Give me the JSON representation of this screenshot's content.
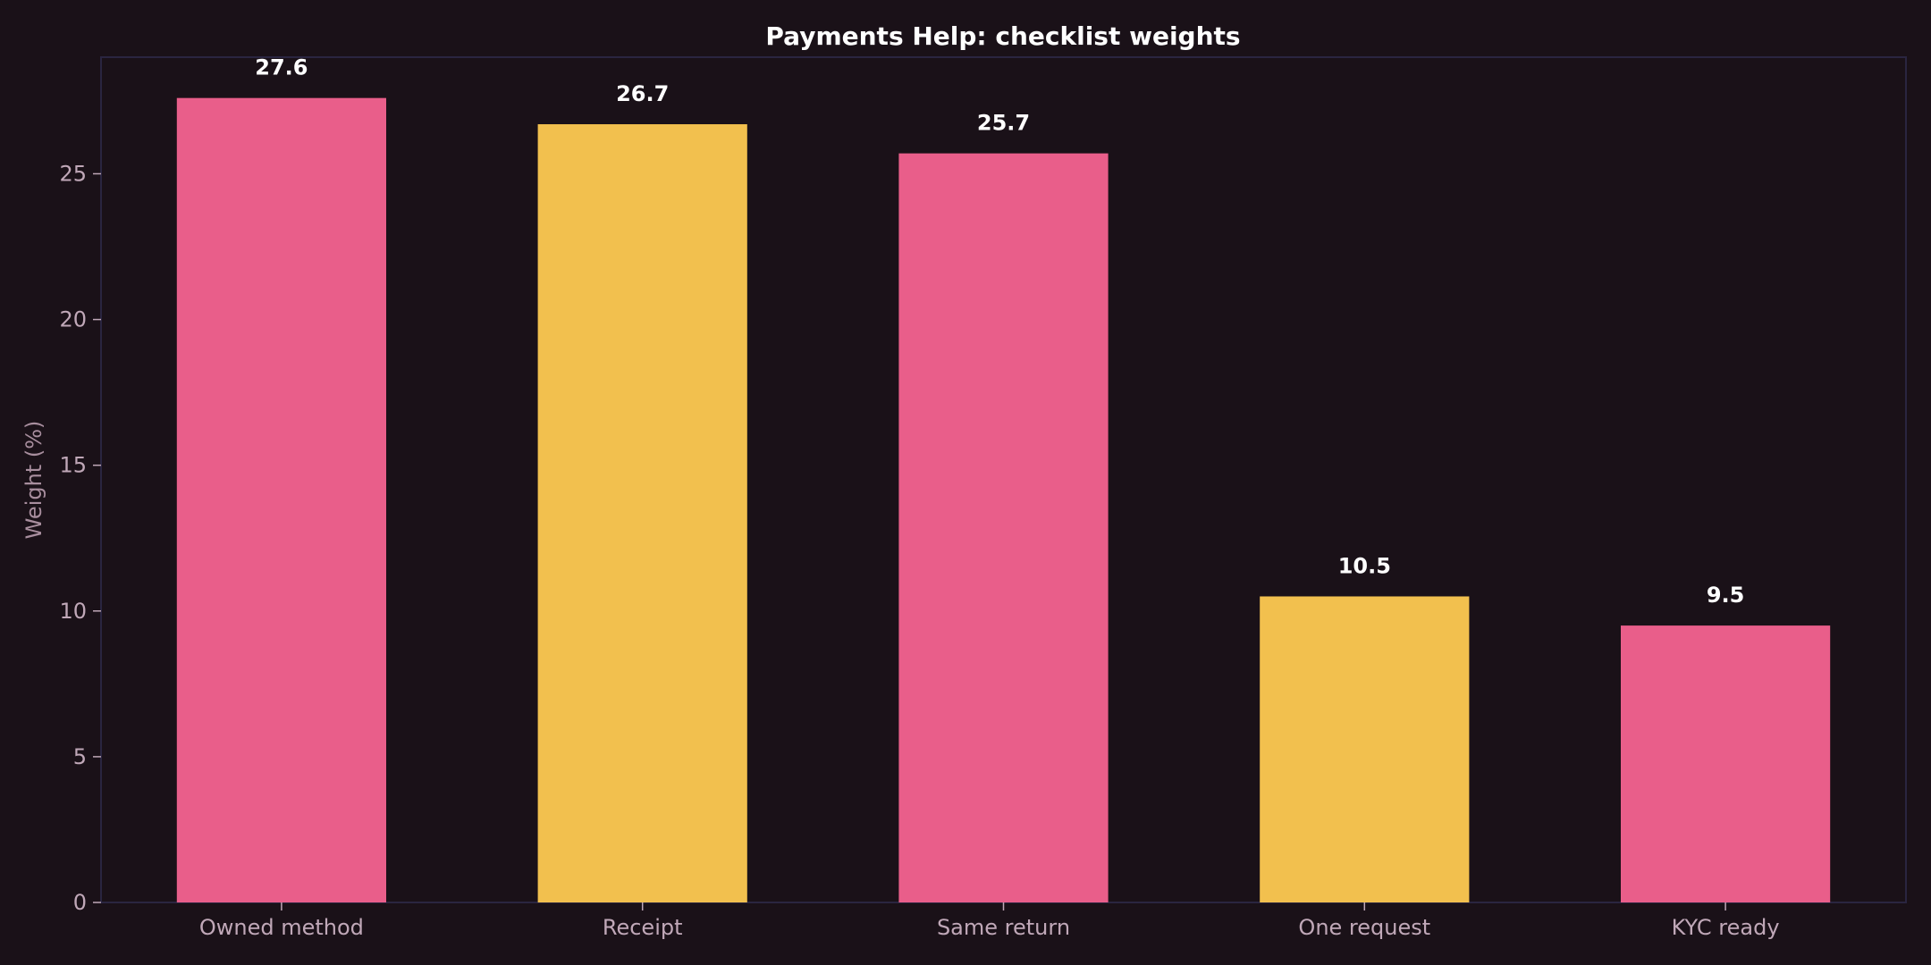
{
  "chart_data": {
    "type": "bar",
    "title": "Payments Help: checklist weights",
    "xlabel": "",
    "ylabel": "Weight (%)",
    "categories": [
      "Owned method",
      "Receipt",
      "Same return",
      "One request",
      "KYC ready"
    ],
    "values": [
      27.6,
      26.7,
      25.7,
      10.5,
      9.5
    ],
    "value_labels": [
      "27.6",
      "26.7",
      "25.7",
      "10.5",
      "9.5"
    ],
    "bar_colors": [
      "#e95e8a",
      "#f2c04e",
      "#e95e8a",
      "#f2c04e",
      "#e95e8a"
    ],
    "ylim": [
      0,
      29
    ],
    "yticks": [
      0,
      5,
      10,
      15,
      20,
      25
    ],
    "grid": false,
    "legend": "none"
  },
  "colors": {
    "background": "#1a1118",
    "frame": "#2a2540",
    "tick_text": "#c0a8b8",
    "tick_mark": "#c0a8b8"
  }
}
